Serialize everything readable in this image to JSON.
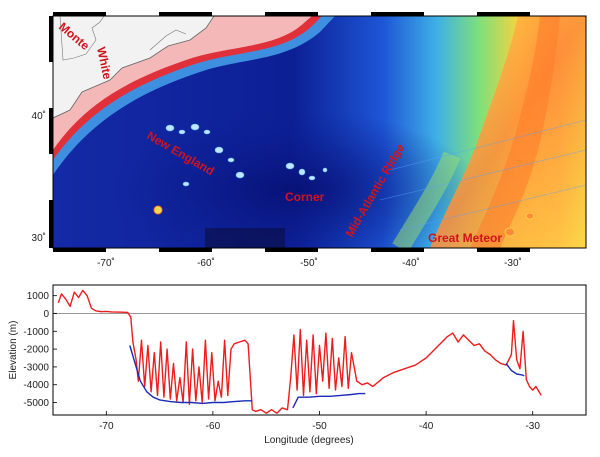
{
  "map": {
    "labels": {
      "monte": "Monte",
      "white": "White",
      "new_england": "New England",
      "corner": "Corner",
      "mar": "Mid-Atlantic Ridge",
      "great_meteor": "Great Meteor"
    },
    "lat_ticks": [
      "40˚",
      "30˚"
    ],
    "lon_ticks": [
      "-70˚",
      "-60˚",
      "-50˚",
      "-40˚",
      "-30˚"
    ],
    "colors": {
      "deep": "#0a1a8c",
      "shelf": "#f4b8b8",
      "ridge": "#ffd23a",
      "label": "#d0141c"
    }
  },
  "chart_data": {
    "type": "line",
    "xlabel": "Longitude (degrees)",
    "ylabel": "Elevation (m)",
    "xlim": [
      -75,
      -25
    ],
    "ylim": [
      -5700,
      1600
    ],
    "x_ticks": [
      -70,
      -60,
      -50,
      -40,
      -30
    ],
    "y_ticks": [
      1000,
      0,
      -1000,
      -2000,
      -3000,
      -4000,
      -5000
    ],
    "grid": false,
    "zero_line": true,
    "series": [
      {
        "color": "#ee1c1c",
        "x": [
          -74.5,
          -74.2,
          -73.8,
          -73.4,
          -73.0,
          -72.6,
          -72.2,
          -71.8,
          -71.4,
          -71.0,
          -70.5,
          -70.0,
          -69.5,
          -69.0,
          -68.5,
          -68.0,
          -67.7,
          -67.5,
          -67.2,
          -67.0,
          -66.7,
          -66.4,
          -66.1,
          -65.8,
          -65.5,
          -65.2,
          -64.9,
          -64.6,
          -64.3,
          -64.0,
          -63.7,
          -63.4,
          -63.1,
          -62.8,
          -62.5,
          -62.2,
          -61.9,
          -61.6,
          -61.3,
          -61.0,
          -60.7,
          -60.4,
          -60.1,
          -59.8,
          -59.5,
          -59.2,
          -58.9,
          -58.6,
          -58.3,
          -58.0,
          -57.5,
          -57.0,
          -56.7,
          -56.3,
          -56.0,
          -55.5,
          -55.0,
          -54.5,
          -54.0,
          -53.5,
          -53.0,
          -52.7,
          -52.4,
          -52.1,
          -51.8,
          -51.5,
          -51.2,
          -50.9,
          -50.6,
          -50.3,
          -50.0,
          -49.7,
          -49.4,
          -49.1,
          -48.8,
          -48.5,
          -48.2,
          -47.9,
          -47.6,
          -47.3,
          -47.0,
          -46.5,
          -46.0,
          -45.5,
          -45.0,
          -44.0,
          -43.0,
          -42.0,
          -41.0,
          -40.0,
          -39.0,
          -38.0,
          -37.5,
          -37.0,
          -36.5,
          -36.0,
          -35.5,
          -35.0,
          -34.5,
          -34.0,
          -33.5,
          -33.0,
          -32.5,
          -32.0,
          -31.8,
          -31.5,
          -31.2,
          -30.9,
          -30.6,
          -30.3,
          -30.0,
          -29.7,
          -29.4,
          -29.2
        ],
        "y": [
          600,
          1100,
          800,
          400,
          1200,
          900,
          1300,
          1000,
          300,
          150,
          100,
          120,
          90,
          80,
          70,
          60,
          -200,
          -1600,
          -2600,
          -3800,
          -1500,
          -4100,
          -1800,
          -4400,
          -2200,
          -4600,
          -1600,
          -4700,
          -2000,
          -4800,
          -2800,
          -4900,
          -3600,
          -5000,
          -1600,
          -5100,
          -2000,
          -4900,
          -3000,
          -5000,
          -1500,
          -4800,
          -2200,
          -4900,
          -3800,
          -4700,
          -1500,
          -4600,
          -2000,
          -1700,
          -1600,
          -1500,
          -1700,
          -5400,
          -5500,
          -5400,
          -5600,
          -5400,
          -5600,
          -5300,
          -5400,
          -3600,
          -1200,
          -4300,
          -900,
          -4600,
          -1500,
          -4400,
          -1200,
          -4500,
          -1800,
          -3800,
          -1100,
          -4200,
          -1400,
          -4300,
          -2500,
          -4100,
          -1300,
          -4200,
          -2200,
          -3800,
          -4000,
          -3900,
          -4100,
          -3600,
          -3300,
          -3100,
          -2900,
          -2500,
          -1900,
          -1300,
          -1100,
          -1600,
          -1200,
          -1500,
          -1800,
          -1700,
          -2100,
          -2300,
          -2600,
          -2800,
          -2900,
          -2300,
          -400,
          -2600,
          -3100,
          -1000,
          -3700,
          -4100,
          -4300,
          -4100,
          -4400,
          -4600
        ]
      },
      {
        "color": "#1a2bb8",
        "x": [
          -67.8,
          -67.3,
          -66.8,
          -66.2,
          -65.6,
          -65.0,
          -64.0,
          -63.0,
          -62.0,
          -61.0,
          -60.0,
          -59.0,
          -58.0,
          -57.0,
          -56.3,
          null,
          -52.5,
          -52.0,
          -51.0,
          -50.0,
          -49.0,
          -48.0,
          -47.0,
          -46.3,
          -45.7,
          null,
          -32.5,
          -32.0,
          -31.5,
          -31.0,
          -30.8
        ],
        "y": [
          -1800,
          -2800,
          -3800,
          -4400,
          -4700,
          -4850,
          -4950,
          -5000,
          -5000,
          -5050,
          -5000,
          -5000,
          -4950,
          -4900,
          -4900,
          null,
          -5300,
          -4700,
          -4700,
          -4650,
          -4650,
          -4600,
          -4550,
          -4500,
          -4500,
          null,
          -2800,
          -3200,
          -3400,
          -3450,
          -3500
        ]
      }
    ]
  }
}
